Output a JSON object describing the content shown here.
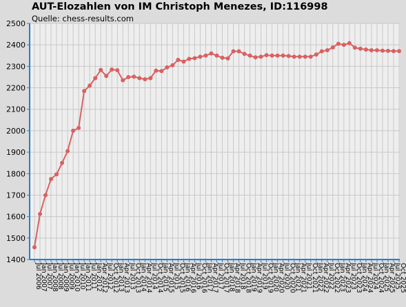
{
  "chart_data": {
    "type": "line",
    "title": "AUT-Elozahlen von IM Christoph Menezes, ID:116998",
    "subtitle": "Quelle: chess-results.com",
    "xlabel": "",
    "ylabel": "",
    "ylim": [
      1400,
      2500
    ],
    "yticks": [
      1400,
      1500,
      1600,
      1700,
      1800,
      1900,
      2000,
      2100,
      2200,
      2300,
      2400,
      2500
    ],
    "grid": true,
    "colors": {
      "plot_bg": "#eeeeee",
      "grid": "#c8c8c8",
      "axis": "#1e7fd8",
      "line": "#d96060"
    },
    "x": [
      "Jul 2006",
      "Jan 2007",
      "Jul 2007",
      "Jan 2008",
      "Jul 2008",
      "Jan 2009",
      "Jul 2009",
      "Jan 2010",
      "Jul 2010",
      "Jan 2011",
      "Jul 2011",
      "Jan 2012",
      "Apr 2012",
      "Jul 2012",
      "Oct 2012",
      "Jan 2013",
      "Apr 2013",
      "Jul 2013",
      "Oct 2013",
      "Jan 2014",
      "Apr 2014",
      "Jul 2014",
      "Oct 2014",
      "Jan 2015",
      "Apr 2015",
      "Jul 2015",
      "Oct 2015",
      "Jan 2016",
      "Apr 2016",
      "Jul 2016",
      "Oct 2016",
      "Jan 2017",
      "Apr 2017",
      "Jul 2017",
      "Oct 2017",
      "Jan 2018",
      "Apr 2018",
      "Jul 2018",
      "Oct 2018",
      "Jan 2019",
      "Apr 2019",
      "Jul 2019",
      "Oct 2019",
      "Jan 2020",
      "Apr 2020",
      "Jul 2020",
      "Oct 2020",
      "Jan 2021",
      "Apr 2021",
      "Jul 2021",
      "Oct 2021",
      "Jan 2022",
      "Apr 2022",
      "Jul 2022",
      "Oct 2022",
      "Jan 2023",
      "Apr 2023",
      "Jul 2023",
      "Oct 2023",
      "Jan 2024",
      "Apr 2024",
      "Jul 2024",
      "Oct 2024",
      "Jan 2025",
      "Apr 2025",
      "Jul 2025",
      "Oct 2025"
    ],
    "series": [
      {
        "values": [
          1457,
          1612,
          1700,
          1775,
          1797,
          1850,
          1905,
          2000,
          2013,
          2185,
          2210,
          2245,
          2283,
          2255,
          2285,
          2282,
          2235,
          2250,
          2252,
          2245,
          2240,
          2245,
          2280,
          2278,
          2295,
          2305,
          2330,
          2322,
          2335,
          2338,
          2345,
          2350,
          2360,
          2350,
          2340,
          2337,
          2370,
          2370,
          2358,
          2350,
          2342,
          2345,
          2352,
          2350,
          2350,
          2350,
          2348,
          2345,
          2345,
          2345,
          2345,
          2355,
          2370,
          2375,
          2388,
          2405,
          2400,
          2408,
          2387,
          2382,
          2378,
          2375,
          2375,
          2373,
          2372,
          2371,
          2371
        ]
      }
    ]
  }
}
